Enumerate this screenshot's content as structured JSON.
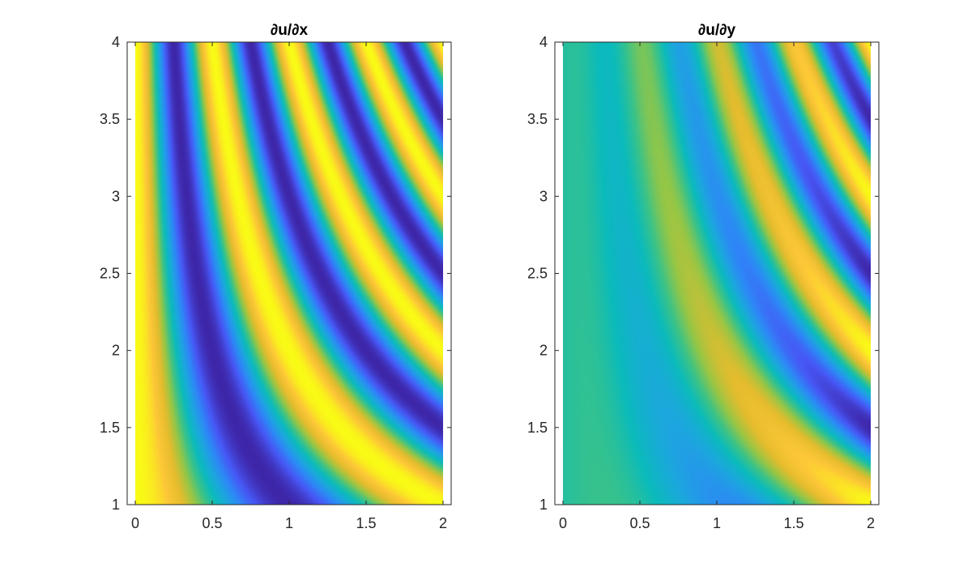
{
  "chart_data": [
    {
      "type": "heatmap",
      "title": "∂u/∂x",
      "xlabel": "",
      "ylabel": "",
      "xlim": [
        0,
        2
      ],
      "ylim": [
        1,
        4
      ],
      "x_ticks": [
        "0",
        "0.5",
        "1",
        "1.5",
        "2"
      ],
      "y_ticks": [
        "1",
        "1.5",
        "2",
        "2.5",
        "3",
        "3.5",
        "4"
      ],
      "colormap": "parula",
      "field": "cos(2*pi*x*y/2)",
      "value_range": [
        -1,
        1
      ],
      "grid": false
    },
    {
      "type": "heatmap",
      "title": "∂u/∂y",
      "xlabel": "",
      "ylabel": "",
      "xlim": [
        0,
        2
      ],
      "ylim": [
        1,
        4
      ],
      "x_ticks": [
        "0",
        "0.5",
        "1",
        "1.5",
        "2"
      ],
      "y_ticks": [
        "1",
        "1.5",
        "2",
        "2.5",
        "3",
        "3.5",
        "4"
      ],
      "colormap": "parula",
      "field": "x*cos(2*pi*x*y/2)/2",
      "value_range": [
        -1,
        1
      ],
      "grid": false
    }
  ],
  "colors": {
    "parula": [
      "#3e26a8",
      "#4757f5",
      "#2e87f7",
      "#1ca7de",
      "#0bbbbb",
      "#3ec385",
      "#97c645",
      "#e4bc2d",
      "#fdc738",
      "#f9fb15"
    ],
    "axes": "#262626",
    "background": "#ffffff"
  }
}
